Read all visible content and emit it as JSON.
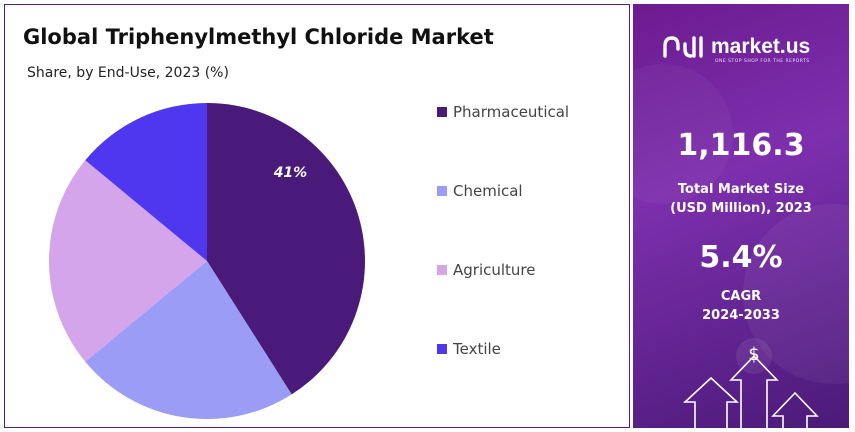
{
  "header": {
    "title": "Global Triphenylmethyl Chloride Market",
    "subtitle": "Share, by End-Use, 2023 (%)"
  },
  "chart_data": {
    "type": "pie",
    "title": "Global Triphenylmethyl Chloride Market",
    "subtitle": "Share, by End-Use, 2023 (%)",
    "categories": [
      "Pharmaceutical",
      "Chemical",
      "Agriculture",
      "Textile"
    ],
    "values": [
      41,
      23,
      22,
      14
    ],
    "data_labels": [
      "41%",
      "",
      "",
      ""
    ],
    "colors": [
      "#4a1a7a",
      "#9b9cf5",
      "#d4a5ea",
      "#4f37f0"
    ],
    "legend_position": "right"
  },
  "brand": {
    "name": "market.us",
    "tagline": "ONE STOP SHOP FOR THE REPORTS"
  },
  "stats": {
    "market_size_value": "1,116.3",
    "market_size_label_line1": "Total Market Size",
    "market_size_label_line2": "(USD Million), 2023",
    "cagr_value": "5.4%",
    "cagr_label_line1": "CAGR",
    "cagr_label_line2": "2024-2033"
  },
  "decor": {
    "currency_symbol": "$"
  }
}
